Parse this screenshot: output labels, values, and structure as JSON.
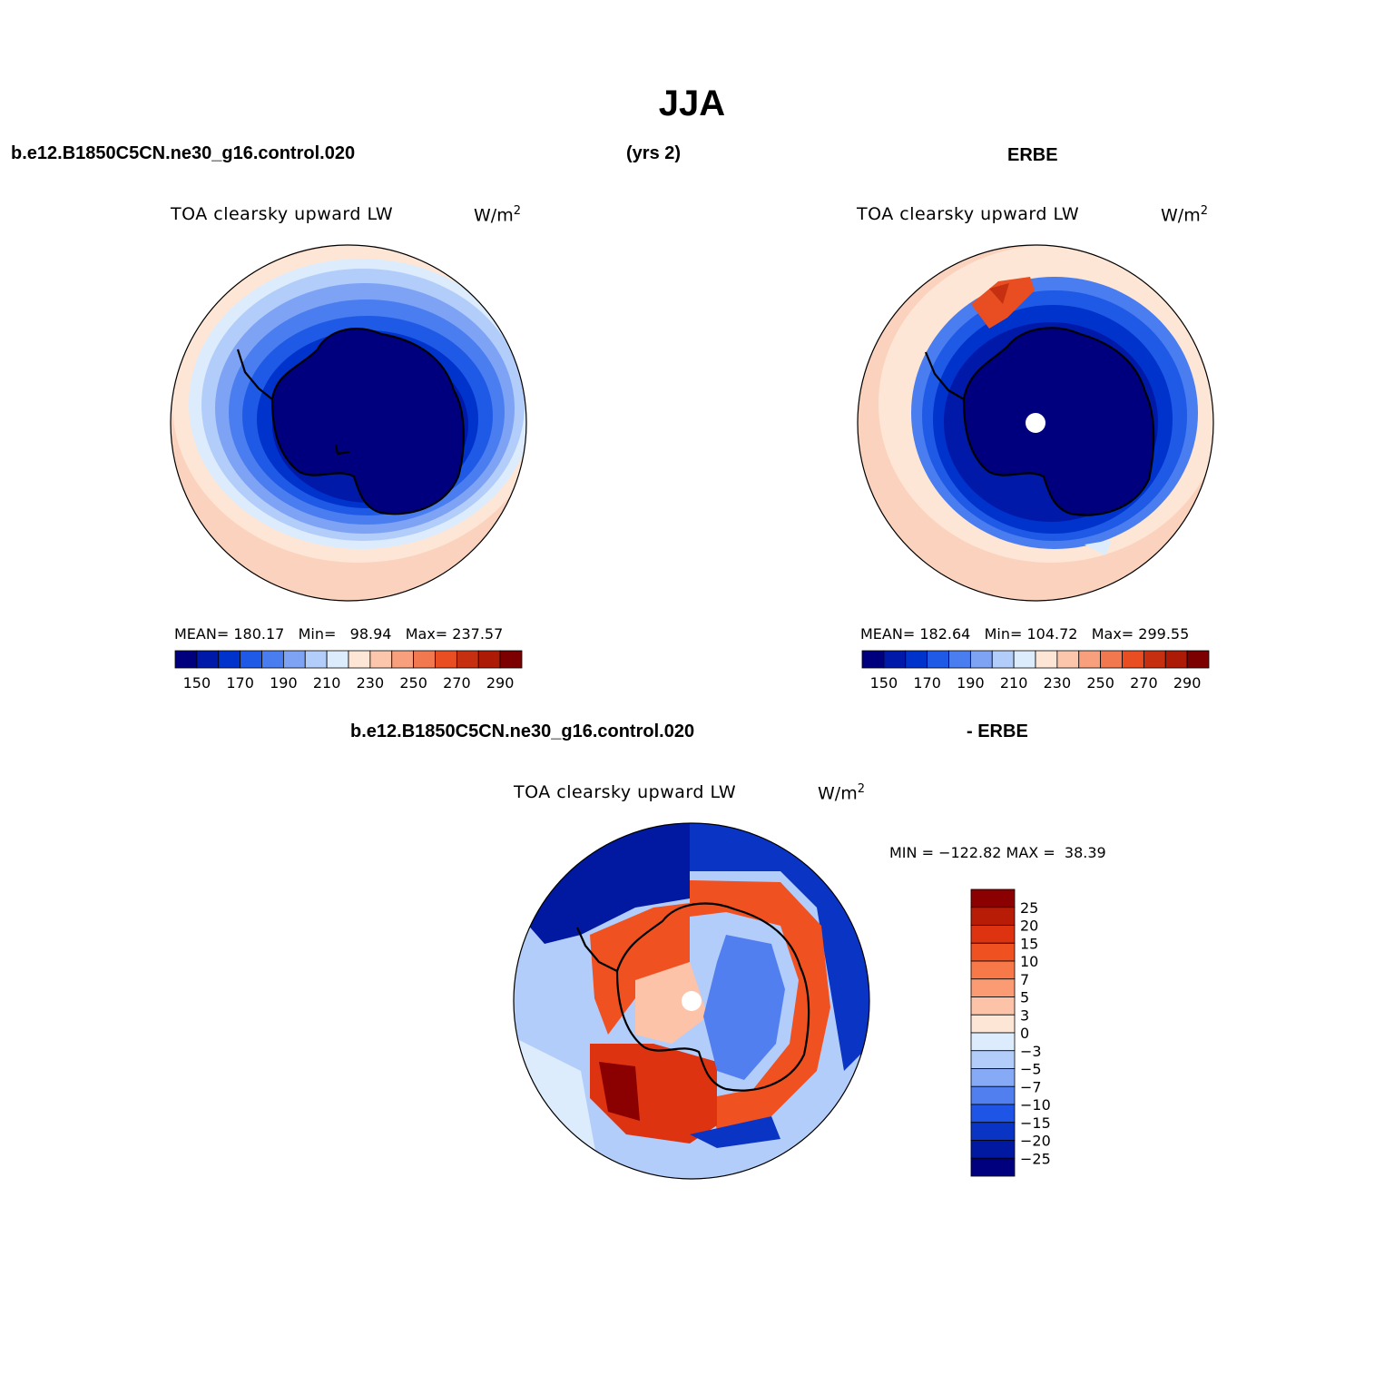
{
  "figure": {
    "season": "JJA",
    "case_name": "b.e12.B1850C5CN.ne30_g16.control.020",
    "years": "(yrs 2)",
    "obs_name": "ERBE",
    "diff_left": "b.e12.B1850C5CN.ne30_g16.control.020",
    "diff_right": "- ERBE"
  },
  "panels": {
    "model": {
      "variable": "TOA clearsky upward LW",
      "units": "W/m",
      "units_sup": "2",
      "stats": {
        "mean_label": "MEAN=",
        "mean": "180.17",
        "min_label": "Min=",
        "min": "98.94",
        "max_label": "Max=",
        "max": "237.57"
      }
    },
    "obs": {
      "variable": "TOA clearsky upward LW",
      "units": "W/m",
      "units_sup": "2",
      "stats": {
        "mean_label": "MEAN=",
        "mean": "182.64",
        "min_label": "Min=",
        "min": "104.72",
        "max_label": "Max=",
        "max": "299.55"
      }
    },
    "diff": {
      "variable": "TOA clearsky upward LW",
      "units": "W/m",
      "units_sup": "2",
      "minmax": "MIN = −122.82 MAX =  38.39"
    }
  },
  "colorbars": {
    "abs_labels": [
      "150",
      "170",
      "190",
      "210",
      "230",
      "250",
      "270",
      "290"
    ],
    "abs_colors": [
      "#00007f",
      "#0019a8",
      "#0033cc",
      "#1f5ae6",
      "#4a7df0",
      "#7ea3f5",
      "#b3cdfa",
      "#dcecfd",
      "#fde6d6",
      "#fcc6ad",
      "#f8a07d",
      "#f2784f",
      "#e84e22",
      "#c62f0f",
      "#ad1a05",
      "#7c0000"
    ],
    "diff_labels": [
      "25",
      "20",
      "15",
      "10",
      "7",
      "5",
      "3",
      "0",
      "−3",
      "−5",
      "−7",
      "−10",
      "−15",
      "−20",
      "−25"
    ],
    "diff_colors": [
      "#8b0000",
      "#b81c06",
      "#dd3311",
      "#ef5121",
      "#f7794a",
      "#fa9b74",
      "#fcc3a8",
      "#fde6d6",
      "#dcecfd",
      "#b3cdfa",
      "#86aaf6",
      "#527ff0",
      "#1f55e6",
      "#0a35c4",
      "#0019a0",
      "#00007f"
    ]
  }
}
